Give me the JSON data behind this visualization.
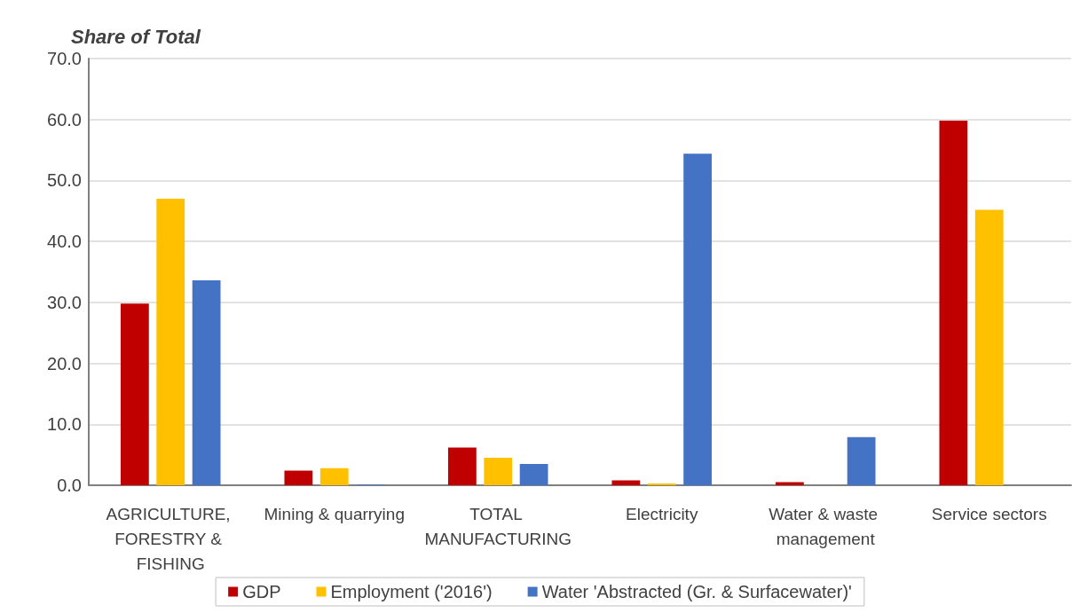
{
  "chart_data": {
    "type": "bar",
    "ylabel": "Share of Total",
    "categories": [
      "AGRICULTURE, FORESTRY & FISHING",
      "Mining & quarrying",
      "TOTAL MANUFACTURING",
      "Electricity",
      "Water & waste management",
      "Service sectors"
    ],
    "series": [
      {
        "name": "GDP",
        "color": "#c00000",
        "values": [
          29.8,
          2.4,
          6.2,
          0.8,
          0.5,
          59.8
        ]
      },
      {
        "name": "Employment ('2016')",
        "color": "#ffc000",
        "values": [
          47.0,
          2.8,
          4.5,
          0.3,
          0,
          45.2
        ]
      },
      {
        "name": "Water 'Abstracted (Gr. & Surfacewater)'",
        "color": "#4472c4",
        "values": [
          33.6,
          0.1,
          3.5,
          54.4,
          7.9,
          0
        ]
      }
    ],
    "ylim": [
      0,
      70
    ],
    "yticks": [
      {
        "value": 0,
        "label": "0.0"
      },
      {
        "value": 10,
        "label": "10.0"
      },
      {
        "value": 20,
        "label": "20.0"
      },
      {
        "value": 30,
        "label": "30.0"
      },
      {
        "value": 40,
        "label": "40.0"
      },
      {
        "value": 50,
        "label": "50.0"
      },
      {
        "value": 60,
        "label": "60.0"
      },
      {
        "value": 70,
        "label": "70.0"
      }
    ],
    "grid": true,
    "legend": "bottom"
  }
}
